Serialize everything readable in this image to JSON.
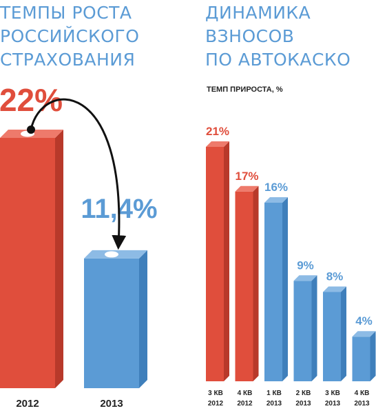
{
  "left_title": [
    "ТЕМПЫ РОСТА",
    "РОССИЙСКОГО",
    "СТРАХОВАНИЯ"
  ],
  "right_title": [
    "ДИНАМИКА",
    "ВЗНОСОВ",
    "ПО АВТОКАСКО"
  ],
  "colors": {
    "red": "#e04e3c",
    "blue": "#5b9bd5",
    "title": "#5b9bd5",
    "text": "#222222"
  },
  "chart_data": [
    {
      "type": "bar",
      "title": "ТЕМПЫ РОСТА РОССИЙСКОГО СТРАХОВАНИЯ",
      "categories": [
        "2012",
        "2013"
      ],
      "values": [
        22,
        11.4
      ],
      "value_labels": [
        "22%",
        "11,4%"
      ],
      "bar_colors": [
        "red",
        "blue"
      ],
      "annotation": "arrow from 2012 bar to 2013 bar",
      "grid": false
    },
    {
      "type": "bar",
      "title": "ДИНАМИКА ВЗНОСОВ ПО АВТОКАСКО",
      "ylabel": "ТЕМП ПРИРОСТА, %",
      "categories": [
        [
          "3 КВ",
          "2012"
        ],
        [
          "4 КВ",
          "2012"
        ],
        [
          "1 КВ",
          "2013"
        ],
        [
          "2 КВ",
          "2013"
        ],
        [
          "3 КВ",
          "2013"
        ],
        [
          "4 КВ",
          "2013"
        ]
      ],
      "values": [
        21,
        17,
        16,
        9,
        8,
        4
      ],
      "value_labels": [
        "21%",
        "17%",
        "16%",
        "9%",
        "8%",
        "4%"
      ],
      "bar_colors": [
        "red",
        "red",
        "blue",
        "blue",
        "blue",
        "blue"
      ],
      "ylim": [
        0,
        21
      ],
      "grid": false
    }
  ]
}
